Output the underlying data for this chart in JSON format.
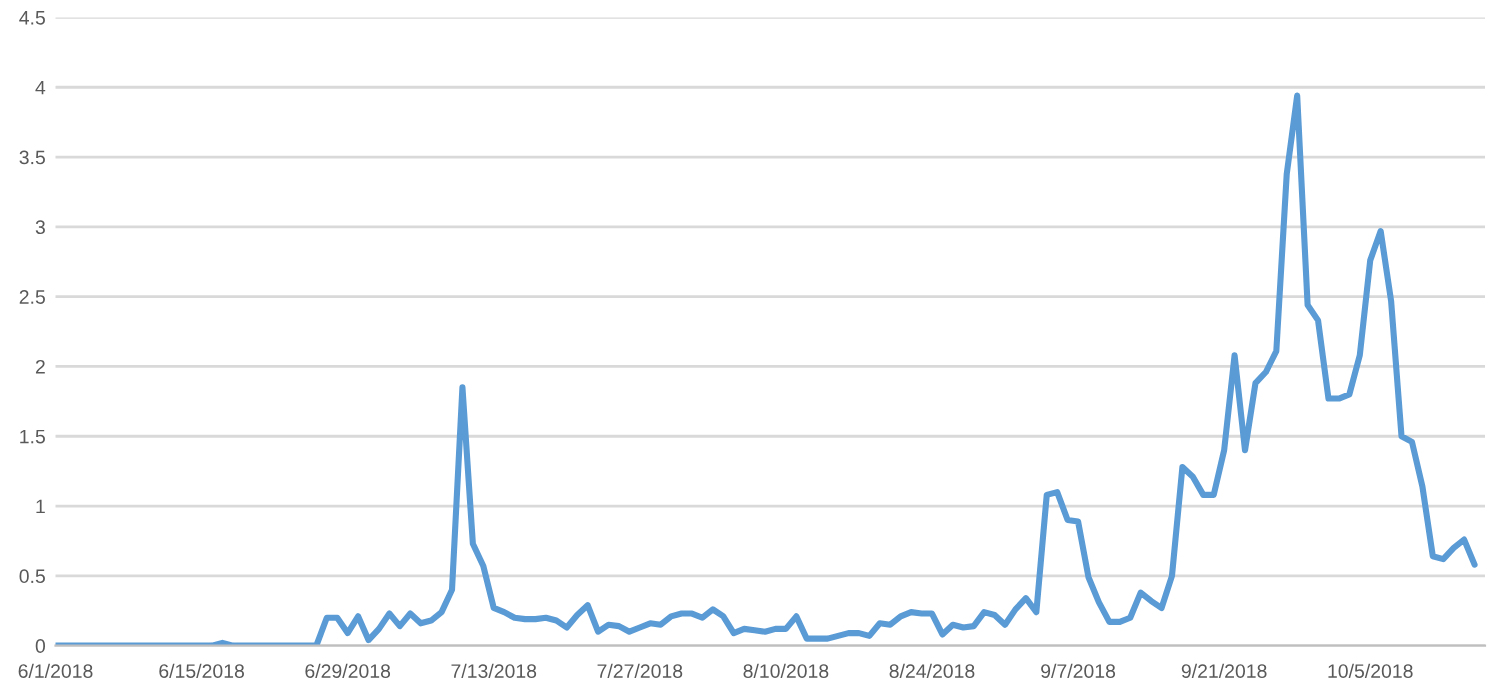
{
  "chart_data": {
    "type": "line",
    "x": [
      "2018-06-01",
      "2018-06-02",
      "2018-06-03",
      "2018-06-04",
      "2018-06-05",
      "2018-06-06",
      "2018-06-07",
      "2018-06-08",
      "2018-06-09",
      "2018-06-10",
      "2018-06-11",
      "2018-06-12",
      "2018-06-13",
      "2018-06-14",
      "2018-06-15",
      "2018-06-16",
      "2018-06-17",
      "2018-06-18",
      "2018-06-19",
      "2018-06-20",
      "2018-06-21",
      "2018-06-22",
      "2018-06-23",
      "2018-06-24",
      "2018-06-25",
      "2018-06-26",
      "2018-06-27",
      "2018-06-28",
      "2018-06-29",
      "2018-06-30",
      "2018-07-01",
      "2018-07-02",
      "2018-07-03",
      "2018-07-04",
      "2018-07-05",
      "2018-07-06",
      "2018-07-07",
      "2018-07-08",
      "2018-07-09",
      "2018-07-10",
      "2018-07-11",
      "2018-07-12",
      "2018-07-13",
      "2018-07-14",
      "2018-07-15",
      "2018-07-16",
      "2018-07-17",
      "2018-07-18",
      "2018-07-19",
      "2018-07-20",
      "2018-07-21",
      "2018-07-22",
      "2018-07-23",
      "2018-07-24",
      "2018-07-25",
      "2018-07-26",
      "2018-07-27",
      "2018-07-28",
      "2018-07-29",
      "2018-07-30",
      "2018-07-31",
      "2018-08-01",
      "2018-08-02",
      "2018-08-03",
      "2018-08-04",
      "2018-08-05",
      "2018-08-06",
      "2018-08-07",
      "2018-08-08",
      "2018-08-09",
      "2018-08-10",
      "2018-08-11",
      "2018-08-12",
      "2018-08-13",
      "2018-08-14",
      "2018-08-15",
      "2018-08-16",
      "2018-08-17",
      "2018-08-18",
      "2018-08-19",
      "2018-08-20",
      "2018-08-21",
      "2018-08-22",
      "2018-08-23",
      "2018-08-24",
      "2018-08-25",
      "2018-08-26",
      "2018-08-27",
      "2018-08-28",
      "2018-08-29",
      "2018-08-30",
      "2018-08-31",
      "2018-09-01",
      "2018-09-02",
      "2018-09-03",
      "2018-09-04",
      "2018-09-05",
      "2018-09-06",
      "2018-09-07",
      "2018-09-08",
      "2018-09-09",
      "2018-09-10",
      "2018-09-11",
      "2018-09-12",
      "2018-09-13",
      "2018-09-14",
      "2018-09-15",
      "2018-09-16",
      "2018-09-17",
      "2018-09-18",
      "2018-09-19",
      "2018-09-20",
      "2018-09-21",
      "2018-09-22",
      "2018-09-23",
      "2018-09-24",
      "2018-09-25",
      "2018-09-26",
      "2018-09-27",
      "2018-09-28",
      "2018-09-29",
      "2018-09-30",
      "2018-10-01",
      "2018-10-02",
      "2018-10-03",
      "2018-10-04",
      "2018-10-05",
      "2018-10-06",
      "2018-10-07",
      "2018-10-08",
      "2018-10-09",
      "2018-10-10",
      "2018-10-11",
      "2018-10-12",
      "2018-10-13",
      "2018-10-14",
      "2018-10-15"
    ],
    "series": [
      {
        "color": "#5b9bd5",
        "values": [
          0,
          0,
          0,
          0,
          0,
          0,
          0,
          0,
          0,
          0,
          0,
          0,
          0,
          0,
          0,
          0,
          0.02,
          0,
          0,
          0,
          0,
          0,
          0,
          0,
          0,
          0,
          0.2,
          0.2,
          0.09,
          0.21,
          0.04,
          0.12,
          0.23,
          0.14,
          0.23,
          0.16,
          0.18,
          0.24,
          0.4,
          1.85,
          0.73,
          0.57,
          0.27,
          0.24,
          0.2,
          0.19,
          0.19,
          0.2,
          0.18,
          0.13,
          0.22,
          0.29,
          0.1,
          0.15,
          0.14,
          0.1,
          0.13,
          0.16,
          0.15,
          0.21,
          0.23,
          0.23,
          0.2,
          0.26,
          0.21,
          0.09,
          0.12,
          0.11,
          0.1,
          0.12,
          0.12,
          0.21,
          0.05,
          0.05,
          0.05,
          0.07,
          0.09,
          0.09,
          0.07,
          0.16,
          0.15,
          0.21,
          0.24,
          0.23,
          0.23,
          0.08,
          0.15,
          0.13,
          0.14,
          0.24,
          0.22,
          0.15,
          0.26,
          0.34,
          0.24,
          1.08,
          1.1,
          0.9,
          0.89,
          0.49,
          0.31,
          0.17,
          0.17,
          0.2,
          0.38,
          0.32,
          0.27,
          0.5,
          1.28,
          1.21,
          1.08,
          1.08,
          1.4,
          2.08,
          1.4,
          1.88,
          1.96,
          2.11,
          3.38,
          3.94,
          2.44,
          2.33,
          1.77,
          1.77,
          1.8,
          2.08,
          2.76,
          2.97,
          2.47,
          1.5,
          1.46,
          1.14,
          0.64,
          0.62,
          0.7,
          0.76,
          0.58
        ]
      }
    ],
    "xlim": [
      "2018-06-01",
      "2018-10-16"
    ],
    "xticks": [
      {
        "value": "2018-06-01",
        "label": "6/1/2018"
      },
      {
        "value": "2018-06-15",
        "label": "6/15/2018"
      },
      {
        "value": "2018-06-29",
        "label": "6/29/2018"
      },
      {
        "value": "2018-07-13",
        "label": "7/13/2018"
      },
      {
        "value": "2018-07-27",
        "label": "7/27/2018"
      },
      {
        "value": "2018-08-10",
        "label": "8/10/2018"
      },
      {
        "value": "2018-08-24",
        "label": "8/24/2018"
      },
      {
        "value": "2018-09-07",
        "label": "9/7/2018"
      },
      {
        "value": "2018-09-21",
        "label": "9/21/2018"
      },
      {
        "value": "2018-10-05",
        "label": "10/5/2018"
      }
    ],
    "ylim": [
      0,
      4.5
    ],
    "yticks": [
      0,
      0.5,
      1,
      1.5,
      2,
      2.5,
      3,
      3.5,
      4,
      4.5
    ],
    "grid": "y",
    "legend": false,
    "marker": "none",
    "line_style": "solid"
  }
}
